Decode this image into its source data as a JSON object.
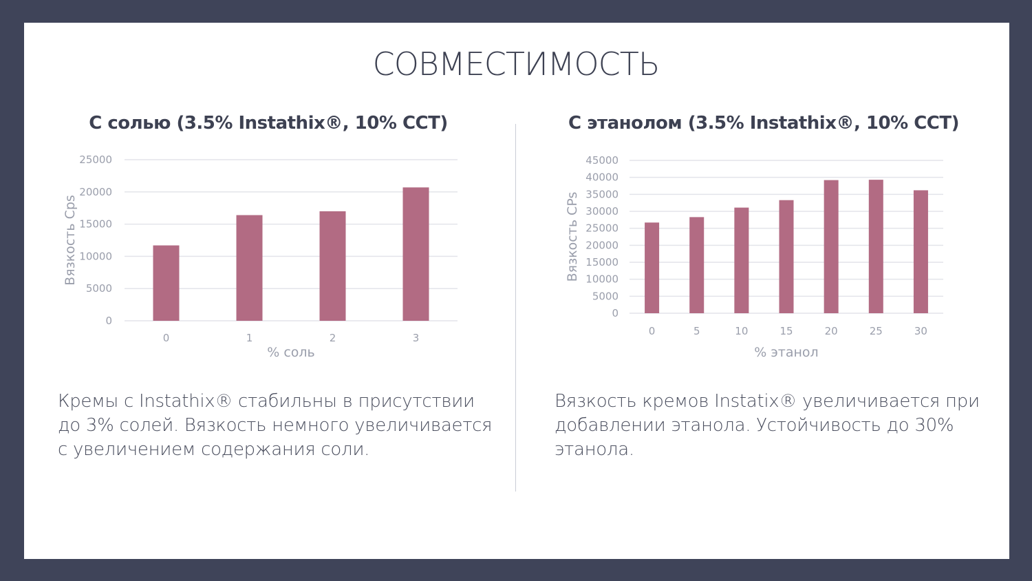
{
  "slide": {
    "title": "СОВМЕСТИМОСТЬ",
    "left_text": "Кремы с Instathix® стабильны в присутствии до 3% солей. Вязкость немного увеличивается с увеличением содержания соли.",
    "right_text": "Вязкость кремов Instatix® увеличивается при добавлении этанола. Устойчивость до 30% этанола."
  },
  "colors": {
    "bar": "#b26b83",
    "grid": "#e3e4ea",
    "frame": "#3f4459"
  },
  "chart_data": [
    {
      "type": "bar",
      "title": "С солью (3.5% Instathix®, 10% CCT)",
      "xlabel": "% соль",
      "ylabel": "Вязкость Cps",
      "categories": [
        "0",
        "1",
        "2",
        "3"
      ],
      "values": [
        11700,
        16400,
        17000,
        20700
      ],
      "ylim": [
        0,
        25000
      ],
      "yticks": [
        "0",
        "5000",
        "10000",
        "15000",
        "20000",
        "25000"
      ],
      "grid": true
    },
    {
      "type": "bar",
      "title": "С этанолом (3.5% Instathix®, 10% CCT)",
      "xlabel": "% этанол",
      "ylabel": "Вязкость CPs",
      "categories": [
        "0",
        "5",
        "10",
        "15",
        "20",
        "25",
        "30"
      ],
      "values": [
        26700,
        28300,
        31100,
        33300,
        39200,
        39300,
        36200
      ],
      "ylim": [
        0,
        45000
      ],
      "yticks": [
        "0",
        "5000",
        "10000",
        "15000",
        "20000",
        "25000",
        "30000",
        "35000",
        "40000",
        "45000"
      ],
      "grid": true
    }
  ]
}
